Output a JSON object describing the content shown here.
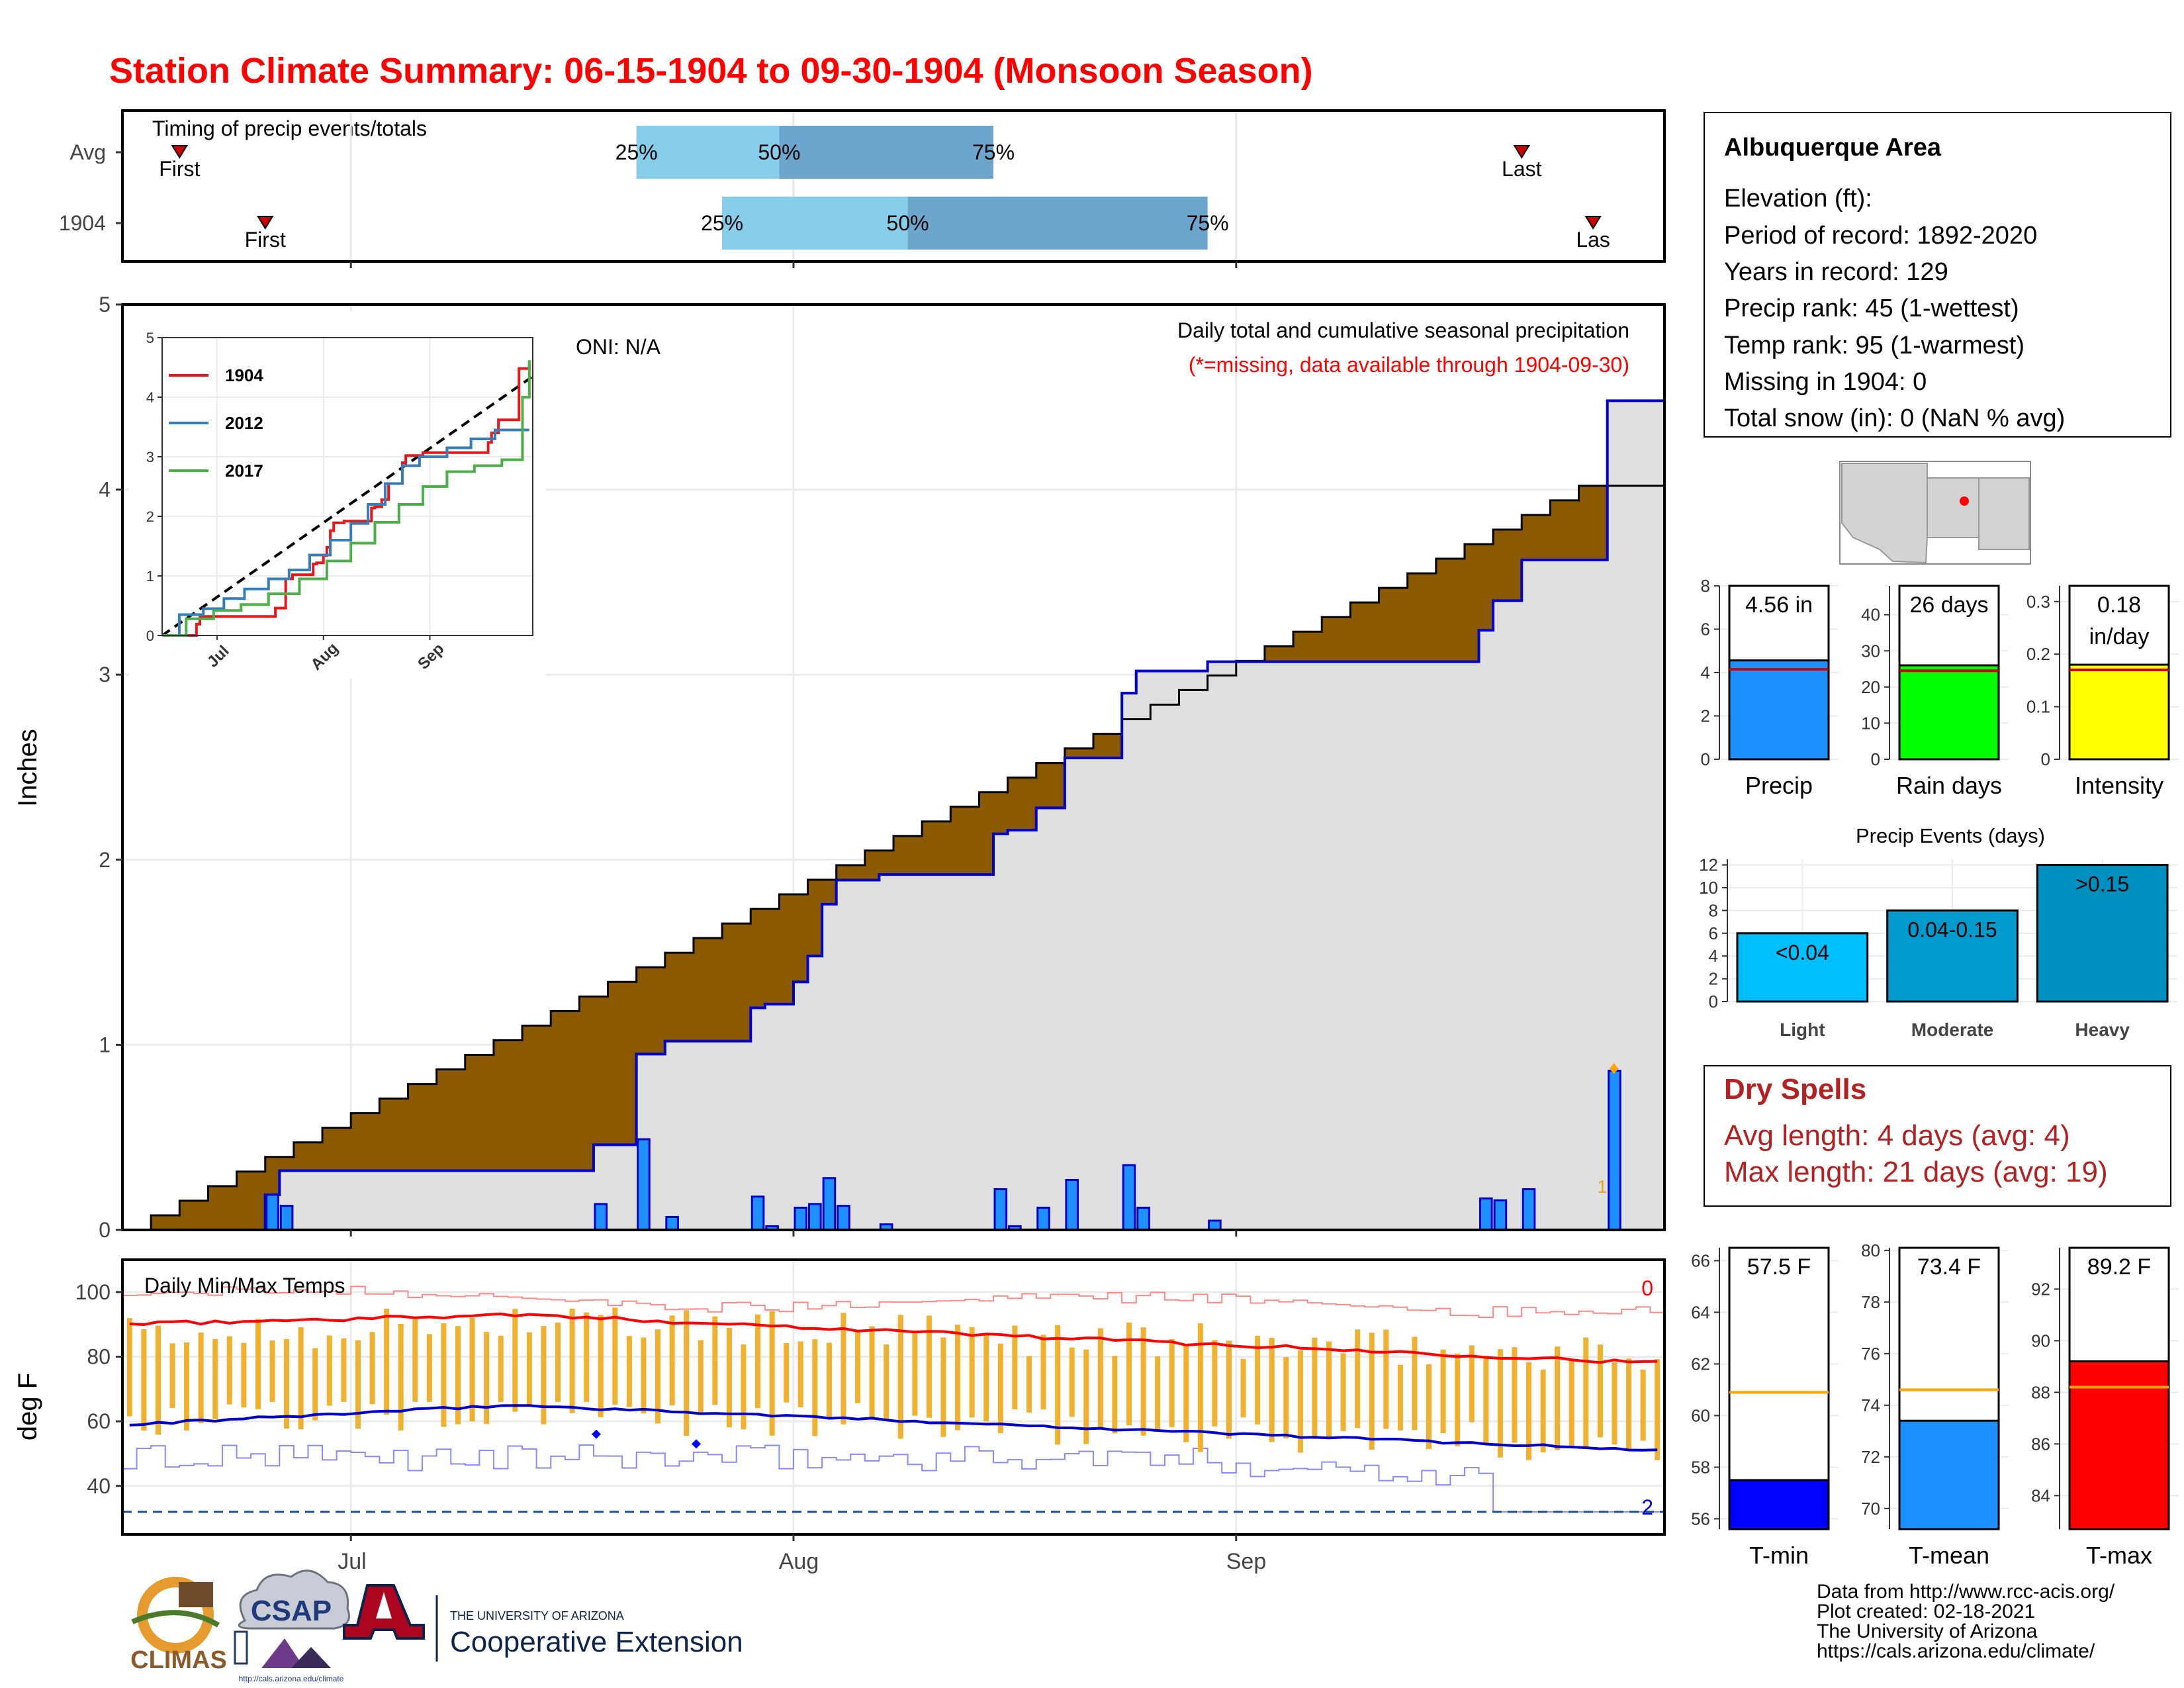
{
  "title": "Station Climate Summary: 06-15-1904 to 09-30-1904 (Monsoon Season)",
  "colors": {
    "title": "#ff0000",
    "precip_brown": "#8b5a00",
    "precip_green": "#008000",
    "precip_bar_blue": "#1e90ff",
    "avg_line_blue": "#0000cc",
    "tmax_red": "#ff0000",
    "tmin_blue": "#0000cc",
    "range_bar_orange": "#f0b030",
    "dry_spells_text": "#b22222",
    "quartile_light": "#87ceeb",
    "quartile_dark": "#6ca6cd"
  },
  "timing": {
    "title": "Timing of precip events/totals",
    "rows": [
      {
        "label": "Avg",
        "first_label": "First",
        "last_label": "Last",
        "first_date": "1904-06-19",
        "q25_date": "1904-07-21",
        "q50_date": "1904-07-31",
        "q75_date": "1904-08-15",
        "last_date": "1904-09-21",
        "pct_labels": [
          "25%",
          "50%",
          "75%"
        ]
      },
      {
        "label": "1904",
        "first_label": "First",
        "last_label": "Las",
        "first_date": "1904-06-25",
        "q25_date": "1904-07-27",
        "q50_date": "1904-08-09",
        "q75_date": "1904-08-30",
        "last_date": "1904-09-26",
        "pct_labels": [
          "25%",
          "50%",
          "75%"
        ]
      }
    ]
  },
  "month_labels": [
    "Jul",
    "Aug",
    "Sep"
  ],
  "chart_data": [
    {
      "type": "area",
      "panel": "cumulative_precip",
      "title": "Daily total and cumulative seasonal precipitation",
      "subtitle": "(*=missing, data available through 1904-09-30)",
      "annotation": "ONI: N/A",
      "ylabel": "Inches",
      "ylim": [
        0,
        5
      ],
      "yticks": [
        0,
        1,
        2,
        3,
        4,
        5
      ],
      "xlim": [
        "1904-06-15",
        "1904-09-30"
      ],
      "xticks": [
        "1904-07-01",
        "1904-08-01",
        "1904-09-01"
      ],
      "daily_precip_1904": [
        {
          "date": "1904-06-25",
          "value": 0.19
        },
        {
          "date": "1904-06-26",
          "value": 0.13
        },
        {
          "date": "1904-07-18",
          "value": 0.14
        },
        {
          "date": "1904-07-21",
          "value": 0.49
        },
        {
          "date": "1904-07-23",
          "value": 0.07
        },
        {
          "date": "1904-07-29",
          "value": 0.18
        },
        {
          "date": "1904-07-30",
          "value": 0.02
        },
        {
          "date": "1904-08-01",
          "value": 0.12
        },
        {
          "date": "1904-08-02",
          "value": 0.14
        },
        {
          "date": "1904-08-03",
          "value": 0.28
        },
        {
          "date": "1904-08-04",
          "value": 0.13
        },
        {
          "date": "1904-08-07",
          "value": 0.03
        },
        {
          "date": "1904-08-15",
          "value": 0.22
        },
        {
          "date": "1904-08-16",
          "value": 0.02
        },
        {
          "date": "1904-08-18",
          "value": 0.12
        },
        {
          "date": "1904-08-20",
          "value": 0.27
        },
        {
          "date": "1904-08-24",
          "value": 0.35
        },
        {
          "date": "1904-08-25",
          "value": 0.12
        },
        {
          "date": "1904-08-30",
          "value": 0.05
        },
        {
          "date": "1904-09-18",
          "value": 0.17
        },
        {
          "date": "1904-09-19",
          "value": 0.16
        },
        {
          "date": "1904-09-21",
          "value": 0.22
        },
        {
          "date": "1904-09-27",
          "value": 0.86
        }
      ],
      "cumulative_avg": {
        "start": 0.0,
        "end": 4.06,
        "start_date": "1904-06-15",
        "end_date": "1904-09-26",
        "step_days": 2
      },
      "final_total": 4.56,
      "markers": [
        {
          "label": "1",
          "date": "1904-09-26",
          "value": 0.2
        }
      ]
    },
    {
      "type": "line",
      "panel": "inset_cumulative",
      "ylim": [
        0,
        5
      ],
      "yticks": [
        0,
        1,
        2,
        3,
        4,
        5
      ],
      "xticks": [
        "Jul",
        "Aug",
        "Sep"
      ],
      "series": [
        {
          "name": "1904",
          "color": "#e31a1c",
          "points": [
            [
              "1904-06-15",
              0
            ],
            [
              "1904-06-25",
              0.19
            ],
            [
              "1904-06-26",
              0.32
            ],
            [
              "1904-07-18",
              0.46
            ],
            [
              "1904-07-21",
              0.95
            ],
            [
              "1904-07-23",
              1.02
            ],
            [
              "1904-07-29",
              1.2
            ],
            [
              "1904-07-30",
              1.22
            ],
            [
              "1904-08-01",
              1.34
            ],
            [
              "1904-08-02",
              1.48
            ],
            [
              "1904-08-03",
              1.76
            ],
            [
              "1904-08-04",
              1.89
            ],
            [
              "1904-08-07",
              1.92
            ],
            [
              "1904-08-15",
              2.14
            ],
            [
              "1904-08-16",
              2.16
            ],
            [
              "1904-08-18",
              2.28
            ],
            [
              "1904-08-20",
              2.55
            ],
            [
              "1904-08-24",
              2.9
            ],
            [
              "1904-08-25",
              3.02
            ],
            [
              "1904-08-30",
              3.07
            ],
            [
              "1904-09-18",
              3.24
            ],
            [
              "1904-09-19",
              3.4
            ],
            [
              "1904-09-21",
              3.62
            ],
            [
              "1904-09-27",
              4.48
            ],
            [
              "1904-09-30",
              4.56
            ]
          ]
        },
        {
          "name": "2012",
          "color": "#377eb8",
          "points": [
            [
              "1904-06-15",
              0
            ],
            [
              "1904-06-20",
              0.35
            ],
            [
              "1904-06-27",
              0.45
            ],
            [
              "1904-07-03",
              0.62
            ],
            [
              "1904-07-09",
              0.78
            ],
            [
              "1904-07-16",
              0.95
            ],
            [
              "1904-07-22",
              1.1
            ],
            [
              "1904-07-28",
              1.35
            ],
            [
              "1904-08-03",
              1.6
            ],
            [
              "1904-08-09",
              1.88
            ],
            [
              "1904-08-14",
              2.2
            ],
            [
              "1904-08-19",
              2.55
            ],
            [
              "1904-08-24",
              2.85
            ],
            [
              "1904-08-29",
              3.0
            ],
            [
              "1904-09-06",
              3.15
            ],
            [
              "1904-09-13",
              3.3
            ],
            [
              "1904-09-20",
              3.45
            ],
            [
              "1904-09-30",
              3.45
            ]
          ]
        },
        {
          "name": "2017",
          "color": "#4daf4a",
          "points": [
            [
              "1904-06-15",
              0
            ],
            [
              "1904-06-22",
              0.28
            ],
            [
              "1904-06-30",
              0.42
            ],
            [
              "1904-07-08",
              0.52
            ],
            [
              "1904-07-16",
              0.7
            ],
            [
              "1904-07-25",
              0.95
            ],
            [
              "1904-08-02",
              1.25
            ],
            [
              "1904-08-09",
              1.55
            ],
            [
              "1904-08-16",
              1.9
            ],
            [
              "1904-08-23",
              2.2
            ],
            [
              "1904-08-30",
              2.5
            ],
            [
              "1904-09-06",
              2.75
            ],
            [
              "1904-09-14",
              2.85
            ],
            [
              "1904-09-22",
              2.95
            ],
            [
              "1904-09-28",
              4.0
            ],
            [
              "1904-09-30",
              4.62
            ]
          ]
        }
      ],
      "avg_line": {
        "style": "dashed",
        "color": "#000000",
        "start_value": 0,
        "end_value": 4.35
      }
    },
    {
      "type": "bar",
      "panel": "daily_temps",
      "title": "Daily Min/Max Temps",
      "ylabel": "deg F",
      "ylim": [
        25,
        110
      ],
      "yticks": [
        40,
        60,
        80,
        100
      ],
      "freeze_line": 32,
      "count_labels": {
        "top": "0",
        "bottom": "2"
      },
      "avg_tmax": {
        "start": 90,
        "peak": 93,
        "end": 78
      },
      "avg_tmin": {
        "start": 59,
        "peak": 65,
        "end": 51
      },
      "record_high_range": [
        94,
        103
      ],
      "record_low_range": [
        32,
        55
      ],
      "daily_max_range": [
        76,
        97
      ],
      "daily_min_range": [
        48,
        66
      ],
      "low_markers": [
        {
          "date": "1904-07-18",
          "value": 56
        },
        {
          "date": "1904-07-25",
          "value": 53
        }
      ]
    },
    {
      "type": "bar",
      "panel": "precip_summary",
      "groups": [
        {
          "label": "Precip",
          "value": 4.56,
          "value_label": "4.56 in",
          "avg": 4.15,
          "ylim": [
            0,
            8
          ],
          "yticks": [
            0,
            2,
            4,
            6,
            8
          ],
          "color": "#1e90ff"
        },
        {
          "label": "Rain days",
          "value": 26,
          "value_label": "26 days",
          "avg": 24.5,
          "ylim": [
            0,
            48
          ],
          "yticks": [
            0,
            10,
            20,
            30,
            40
          ],
          "color": "#00ff00"
        },
        {
          "label": "Intensity",
          "value": 0.18,
          "value_label": "0.18 in/day",
          "avg": 0.17,
          "ylim": [
            0,
            0.33
          ],
          "yticks": [
            0.0,
            0.1,
            0.2,
            0.3
          ],
          "color": "#ffff00"
        }
      ]
    },
    {
      "type": "bar",
      "panel": "precip_events",
      "title": "Precip Events (days)",
      "categories": [
        "Light",
        "Moderate",
        "Heavy"
      ],
      "values": [
        6,
        8,
        12
      ],
      "value_labels": [
        "<0.04",
        "0.04-0.15",
        ">0.15"
      ],
      "ylim": [
        0,
        12.5
      ],
      "yticks": [
        0,
        2,
        4,
        6,
        8,
        10,
        12
      ],
      "colors": [
        "#00bfff",
        "#009acd",
        "#0090c0"
      ]
    },
    {
      "type": "bar",
      "panel": "temp_summary",
      "groups": [
        {
          "label": "T-min",
          "value": 57.5,
          "value_label": "57.5 F",
          "avg": 60.9,
          "ylim": [
            55.6,
            66.5
          ],
          "yticks": [
            56,
            58,
            60,
            62,
            64,
            66
          ],
          "color": "#0000ff"
        },
        {
          "label": "T-mean",
          "value": 73.4,
          "value_label": "73.4 F",
          "avg": 74.6,
          "ylim": [
            69.2,
            80.1
          ],
          "yticks": [
            70,
            72,
            74,
            76,
            78,
            80
          ],
          "color": "#1e90ff"
        },
        {
          "label": "T-max",
          "value": 89.2,
          "value_label": "89.2 F",
          "avg": 88.2,
          "ylim": [
            82.7,
            93.6
          ],
          "yticks": [
            84,
            86,
            88,
            90,
            92
          ],
          "color": "#ff0000"
        }
      ]
    }
  ],
  "station": {
    "name": "Albuquerque Area",
    "lines": [
      "Elevation (ft):",
      "Period of record: 1892-2020",
      "Years in record: 129",
      "Precip rank: 45 (1-wettest)",
      "Temp rank: 95 (1-warmest)",
      "Missing in 1904: 0",
      "Total snow (in): 0 (NaN % avg)"
    ]
  },
  "dry_spells": {
    "title": "Dry Spells",
    "avg": "Avg length: 4 days (avg: 4)",
    "max": "Max length: 21 days (avg: 19)"
  },
  "logos": {
    "climas": "CLIMAS",
    "csap": "CSAP",
    "uofa_small": "THE UNIVERSITY OF ARIZONA",
    "uofa_big": "Cooperative Extension",
    "csap_url": "http://cals.arizona.edu/climate"
  },
  "footer": {
    "lines": [
      "Data from http://www.rcc-acis.org/",
      "Plot created: 02-18-2021",
      "The University of Arizona",
      "https://cals.arizona.edu/climate/"
    ]
  }
}
